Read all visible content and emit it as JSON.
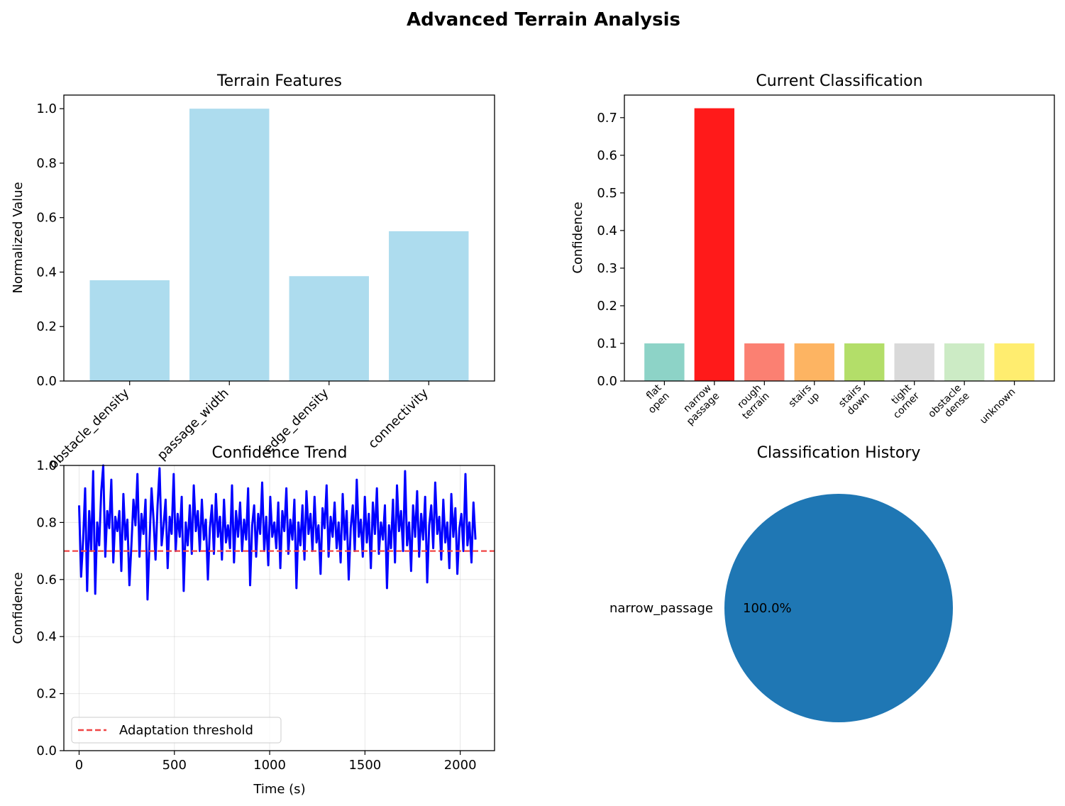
{
  "figure": {
    "title": "Advanced Terrain Analysis"
  },
  "chart_data": [
    {
      "type": "bar",
      "title": "Terrain Features",
      "xlabel": "",
      "ylabel": "Normalized Value",
      "categories": [
        "obstacle_density",
        "passage_width",
        "edge_density",
        "connectivity"
      ],
      "values": [
        0.37,
        1.0,
        0.385,
        0.55
      ],
      "ylim": [
        0,
        1.05
      ],
      "yticks": [
        0.0,
        0.2,
        0.4,
        0.6,
        0.8,
        1.0
      ],
      "ytick_labels": [
        "0.0",
        "0.2",
        "0.4",
        "0.6",
        "0.8",
        "1.0"
      ],
      "color": "#ADDCEE",
      "grid": false
    },
    {
      "type": "bar",
      "title": "Current Classification",
      "xlabel": "",
      "ylabel": "Confidence",
      "categories": [
        [
          "flat",
          "open"
        ],
        [
          "narrow",
          "passage"
        ],
        [
          "rough",
          "terrain"
        ],
        [
          "stairs",
          "up"
        ],
        [
          "stairs",
          "down"
        ],
        [
          "tight",
          "corner"
        ],
        [
          "obstacle",
          "dense"
        ],
        [
          "unknown"
        ]
      ],
      "values": [
        0.1,
        0.725,
        0.1,
        0.1,
        0.1,
        0.1,
        0.1,
        0.1
      ],
      "colors": [
        "#8DD3C7",
        "#FF1A1A",
        "#FB8072",
        "#FDB462",
        "#B3DE69",
        "#D9D9D9",
        "#CCEBC5",
        "#FFED6F"
      ],
      "ylim": [
        0,
        0.76
      ],
      "yticks": [
        0.0,
        0.1,
        0.2,
        0.3,
        0.4,
        0.5,
        0.6,
        0.7
      ],
      "ytick_labels": [
        "0.0",
        "0.1",
        "0.2",
        "0.3",
        "0.4",
        "0.5",
        "0.6",
        "0.7"
      ],
      "grid": false
    },
    {
      "type": "line",
      "title": "Confidence Trend",
      "xlabel": "Time (s)",
      "ylabel": "Confidence",
      "xlim": [
        -80,
        2180
      ],
      "ylim": [
        0,
        1.0
      ],
      "xticks": [
        0,
        500,
        1000,
        1500,
        2000
      ],
      "xtick_labels": [
        "0",
        "500",
        "1000",
        "1500",
        "2000"
      ],
      "yticks": [
        0.0,
        0.2,
        0.4,
        0.6,
        0.8,
        1.0
      ],
      "ytick_labels": [
        "0.0",
        "0.2",
        "0.4",
        "0.6",
        "0.8",
        "1.0"
      ],
      "grid": true,
      "series": [
        {
          "color": "#0000FF",
          "x_start": 0,
          "x_end": 2080,
          "y": [
            0.86,
            0.61,
            0.74,
            0.92,
            0.56,
            0.84,
            0.7,
            0.98,
            0.55,
            0.8,
            0.72,
            0.91,
            1.0,
            0.68,
            0.84,
            0.78,
            0.95,
            0.66,
            0.82,
            0.77,
            0.84,
            0.63,
            0.9,
            0.74,
            0.81,
            0.58,
            0.72,
            0.88,
            0.79,
            0.97,
            0.68,
            0.83,
            0.76,
            0.88,
            0.53,
            0.73,
            0.92,
            0.81,
            0.67,
            0.86,
            0.99,
            0.72,
            0.79,
            0.88,
            0.64,
            0.82,
            0.76,
            0.97,
            0.7,
            0.83,
            0.75,
            0.89,
            0.56,
            0.8,
            0.72,
            0.86,
            0.69,
            0.93,
            0.77,
            0.84,
            0.7,
            0.88,
            0.74,
            0.81,
            0.6,
            0.78,
            0.86,
            0.69,
            0.9,
            0.75,
            0.82,
            0.67,
            0.88,
            0.73,
            0.79,
            0.71,
            0.93,
            0.66,
            0.84,
            0.75,
            0.87,
            0.7,
            0.81,
            0.74,
            0.92,
            0.58,
            0.79,
            0.86,
            0.68,
            0.83,
            0.76,
            0.94,
            0.7,
            0.82,
            0.65,
            0.89,
            0.75,
            0.8,
            0.71,
            0.87,
            0.64,
            0.84,
            0.77,
            0.92,
            0.69,
            0.81,
            0.74,
            0.88,
            0.57,
            0.8,
            0.72,
            0.86,
            0.67,
            0.91,
            0.76,
            0.83,
            0.7,
            0.89,
            0.73,
            0.79,
            0.62,
            0.85,
            0.78,
            0.93,
            0.68,
            0.82,
            0.75,
            0.87,
            0.71,
            0.8,
            0.66,
            0.9,
            0.74,
            0.84,
            0.6,
            0.78,
            0.86,
            0.7,
            0.95,
            0.75,
            0.81,
            0.68,
            0.89,
            0.73,
            0.83,
            0.64,
            0.87,
            0.76,
            0.92,
            0.69,
            0.8,
            0.74,
            0.86,
            0.57,
            0.79,
            0.71,
            0.88,
            0.66,
            0.93,
            0.77,
            0.84,
            0.7,
            0.98,
            0.72,
            0.8,
            0.63,
            0.86,
            0.75,
            0.91,
            0.68,
            0.83,
            0.74,
            0.89,
            0.59,
            0.79,
            0.86,
            0.71,
            0.94,
            0.76,
            0.82,
            0.67,
            0.88,
            0.73,
            0.8,
            0.64,
            0.9,
            0.75,
            0.85,
            0.62,
            0.78,
            0.83,
            0.7,
            0.97,
            0.72,
            0.8,
            0.66,
            0.87,
            0.74
          ],
          "x_note": ""
        },
        {
          "name": "Adaptation threshold",
          "color": "#F04545",
          "dashed": true,
          "y_const": 0.7
        }
      ],
      "legend": "lower-left"
    },
    {
      "type": "pie",
      "title": "Classification History",
      "labels": [
        "narrow_passage"
      ],
      "values": [
        100.0
      ],
      "pct_labels": [
        "100.0%"
      ],
      "colors": [
        "#1F77B4"
      ]
    }
  ]
}
